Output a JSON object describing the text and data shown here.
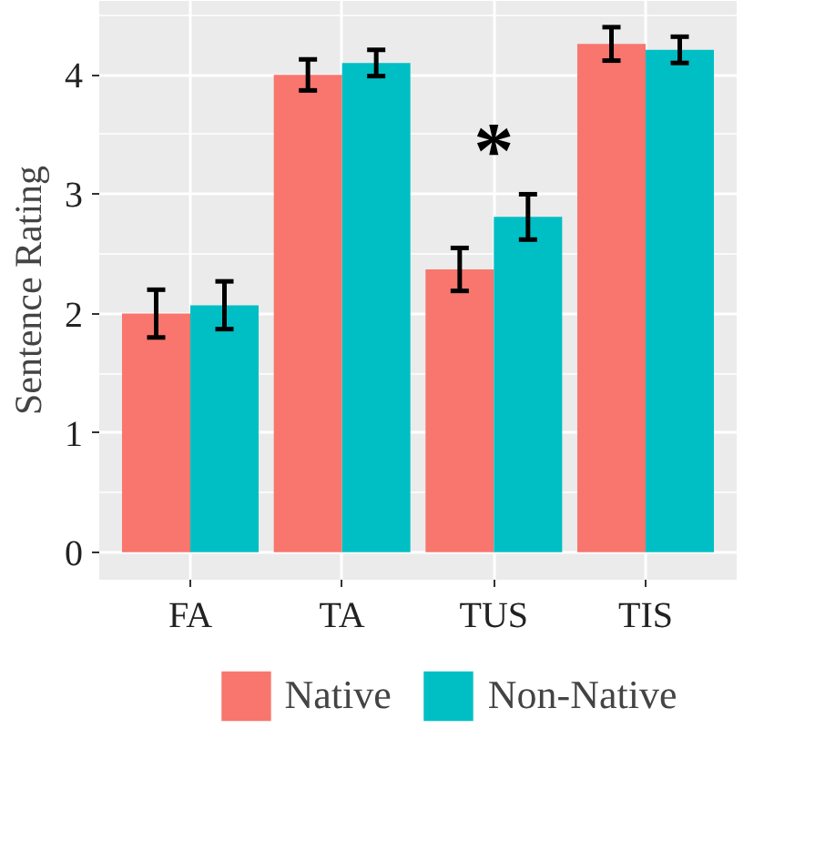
{
  "chart_data": {
    "type": "bar",
    "ylabel": "Sentence Rating",
    "categories": [
      "FA",
      "TA",
      "TUS",
      "TIS"
    ],
    "series": [
      {
        "name": "Native",
        "color": "#f8766d",
        "values": [
          2.0,
          4.0,
          2.37,
          4.26
        ],
        "errors": [
          0.2,
          0.13,
          0.18,
          0.14
        ]
      },
      {
        "name": "Non-Native",
        "color": "#00bfc4",
        "values": [
          2.07,
          4.1,
          2.81,
          4.21
        ],
        "errors": [
          0.2,
          0.11,
          0.19,
          0.11
        ]
      }
    ],
    "ylim": [
      -0.23,
      4.62
    ],
    "yticks": [
      0,
      1,
      2,
      3,
      4
    ],
    "grid": true,
    "legend": "bottom",
    "annotations": [
      "*"
    ]
  }
}
